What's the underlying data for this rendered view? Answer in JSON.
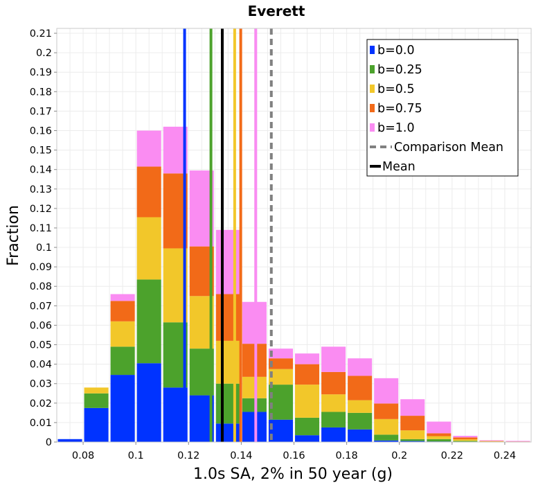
{
  "chart_data": {
    "type": "bar",
    "stacked": true,
    "title": "Everett",
    "xlabel": "1.0s SA, 2% in 50 year (g)",
    "ylabel": "Fraction",
    "xlim": [
      0.07,
      0.25
    ],
    "ylim": [
      0,
      0.2125
    ],
    "x_ticks": [
      "0.08",
      "0.1",
      "0.12",
      "0.14",
      "0.16",
      "0.18",
      "0.2",
      "0.22",
      "0.24"
    ],
    "x_tick_values": [
      0.08,
      0.1,
      0.12,
      0.14,
      0.16,
      0.18,
      0.2,
      0.22,
      0.24
    ],
    "y_ticks": [
      "0",
      "0.01",
      "0.02",
      "0.03",
      "0.04",
      "0.05",
      "0.06",
      "0.07",
      "0.08",
      "0.09",
      "0.1",
      "0.11",
      "0.12",
      "0.13",
      "0.14",
      "0.15",
      "0.16",
      "0.17",
      "0.18",
      "0.19",
      "0.2",
      "0.21"
    ],
    "y_tick_values": [
      0,
      0.01,
      0.02,
      0.03,
      0.04,
      0.05,
      0.06,
      0.07,
      0.08,
      0.09,
      0.1,
      0.11,
      0.12,
      0.13,
      0.14,
      0.15,
      0.16,
      0.17,
      0.18,
      0.19,
      0.2,
      0.21
    ],
    "grid": true,
    "legend_position": "top-right",
    "bin_width": 0.02,
    "bins": [
      {
        "x_start": 0.07,
        "x_end": 0.09
      },
      {
        "x_start": 0.09,
        "x_end": 0.11
      },
      {
        "x_start": 0.11,
        "x_end": 0.13
      },
      {
        "x_start": 0.13,
        "x_end": 0.15
      },
      {
        "x_start": 0.15,
        "x_end": 0.17
      },
      {
        "x_start": 0.17,
        "x_end": 0.19
      },
      {
        "x_start": 0.19,
        "x_end": 0.21
      },
      {
        "x_start": 0.21,
        "x_end": 0.23
      },
      {
        "x_start": 0.23,
        "x_end": 0.25
      }
    ],
    "series": [
      {
        "name": "b=0.0",
        "color": "#0033ff",
        "bars": [
          {
            "x_start": 0.07,
            "x_end": 0.08,
            "value": 0.0015
          },
          {
            "x_start": 0.08,
            "x_end": 0.09,
            "value": 0.0175
          },
          {
            "x_start": 0.09,
            "x_end": 0.1,
            "value": 0.0345
          },
          {
            "x_start": 0.1,
            "x_end": 0.11,
            "value": 0.0405
          },
          {
            "x_start": 0.11,
            "x_end": 0.12,
            "value": 0.028
          },
          {
            "x_start": 0.12,
            "x_end": 0.13,
            "value": 0.024
          },
          {
            "x_start": 0.13,
            "x_end": 0.14,
            "value": 0.0095
          },
          {
            "x_start": 0.14,
            "x_end": 0.15,
            "value": 0.0155
          },
          {
            "x_start": 0.15,
            "x_end": 0.16,
            "value": 0.0115
          },
          {
            "x_start": 0.16,
            "x_end": 0.17,
            "value": 0.0035
          },
          {
            "x_start": 0.17,
            "x_end": 0.18,
            "value": 0.0075
          },
          {
            "x_start": 0.18,
            "x_end": 0.19,
            "value": 0.0065
          },
          {
            "x_start": 0.19,
            "x_end": 0.2,
            "value": 0.0008
          },
          {
            "x_start": 0.2,
            "x_end": 0.21,
            "value": 0.0005
          },
          {
            "x_start": 0.21,
            "x_end": 0.22,
            "value": 0.0003
          },
          {
            "x_start": 0.22,
            "x_end": 0.23,
            "value": 0.0002
          },
          {
            "x_start": 0.23,
            "x_end": 0.24,
            "value": 0.0001
          },
          {
            "x_start": 0.24,
            "x_end": 0.25,
            "value": 0.0
          }
        ],
        "vline": 0.1185
      },
      {
        "name": "b=0.25",
        "color": "#4ca22c",
        "bars": [
          {
            "x_start": 0.08,
            "x_end": 0.09,
            "value": 0.0075
          },
          {
            "x_start": 0.09,
            "x_end": 0.1,
            "value": 0.0145
          },
          {
            "x_start": 0.1,
            "x_end": 0.11,
            "value": 0.043
          },
          {
            "x_start": 0.11,
            "x_end": 0.12,
            "value": 0.0335
          },
          {
            "x_start": 0.12,
            "x_end": 0.13,
            "value": 0.024
          },
          {
            "x_start": 0.13,
            "x_end": 0.14,
            "value": 0.0205
          },
          {
            "x_start": 0.14,
            "x_end": 0.15,
            "value": 0.007
          },
          {
            "x_start": 0.15,
            "x_end": 0.16,
            "value": 0.018
          },
          {
            "x_start": 0.16,
            "x_end": 0.17,
            "value": 0.009
          },
          {
            "x_start": 0.17,
            "x_end": 0.18,
            "value": 0.008
          },
          {
            "x_start": 0.18,
            "x_end": 0.19,
            "value": 0.0085
          },
          {
            "x_start": 0.19,
            "x_end": 0.2,
            "value": 0.003
          },
          {
            "x_start": 0.2,
            "x_end": 0.21,
            "value": 0.001
          },
          {
            "x_start": 0.21,
            "x_end": 0.22,
            "value": 0.0012
          },
          {
            "x_start": 0.22,
            "x_end": 0.23,
            "value": 0.0004
          },
          {
            "x_start": 0.23,
            "x_end": 0.24,
            "value": 0.0001
          },
          {
            "x_start": 0.24,
            "x_end": 0.25,
            "value": 0.0001
          }
        ],
        "vline": 0.1285
      },
      {
        "name": "b=0.5",
        "color": "#f2c72a",
        "bars": [
          {
            "x_start": 0.08,
            "x_end": 0.09,
            "value": 0.003
          },
          {
            "x_start": 0.09,
            "x_end": 0.1,
            "value": 0.013
          },
          {
            "x_start": 0.1,
            "x_end": 0.11,
            "value": 0.032
          },
          {
            "x_start": 0.11,
            "x_end": 0.12,
            "value": 0.038
          },
          {
            "x_start": 0.12,
            "x_end": 0.13,
            "value": 0.027
          },
          {
            "x_start": 0.13,
            "x_end": 0.14,
            "value": 0.022
          },
          {
            "x_start": 0.14,
            "x_end": 0.15,
            "value": 0.011
          },
          {
            "x_start": 0.15,
            "x_end": 0.16,
            "value": 0.008
          },
          {
            "x_start": 0.16,
            "x_end": 0.17,
            "value": 0.017
          },
          {
            "x_start": 0.17,
            "x_end": 0.18,
            "value": 0.009
          },
          {
            "x_start": 0.18,
            "x_end": 0.19,
            "value": 0.0065
          },
          {
            "x_start": 0.19,
            "x_end": 0.2,
            "value": 0.008
          },
          {
            "x_start": 0.2,
            "x_end": 0.21,
            "value": 0.0045
          },
          {
            "x_start": 0.21,
            "x_end": 0.22,
            "value": 0.0015
          },
          {
            "x_start": 0.22,
            "x_end": 0.23,
            "value": 0.0008
          },
          {
            "x_start": 0.23,
            "x_end": 0.24,
            "value": 0.0002
          },
          {
            "x_start": 0.24,
            "x_end": 0.25,
            "value": 0.0001
          }
        ],
        "vline": 0.1375
      },
      {
        "name": "b=0.75",
        "color": "#f26a18",
        "bars": [
          {
            "x_start": 0.09,
            "x_end": 0.1,
            "value": 0.0105
          },
          {
            "x_start": 0.1,
            "x_end": 0.11,
            "value": 0.026
          },
          {
            "x_start": 0.11,
            "x_end": 0.12,
            "value": 0.0385
          },
          {
            "x_start": 0.12,
            "x_end": 0.13,
            "value": 0.0255
          },
          {
            "x_start": 0.13,
            "x_end": 0.14,
            "value": 0.024
          },
          {
            "x_start": 0.14,
            "x_end": 0.15,
            "value": 0.017
          },
          {
            "x_start": 0.15,
            "x_end": 0.16,
            "value": 0.0055
          },
          {
            "x_start": 0.16,
            "x_end": 0.17,
            "value": 0.0105
          },
          {
            "x_start": 0.17,
            "x_end": 0.18,
            "value": 0.0115
          },
          {
            "x_start": 0.18,
            "x_end": 0.19,
            "value": 0.0125
          },
          {
            "x_start": 0.19,
            "x_end": 0.2,
            "value": 0.008
          },
          {
            "x_start": 0.2,
            "x_end": 0.21,
            "value": 0.0075
          },
          {
            "x_start": 0.21,
            "x_end": 0.22,
            "value": 0.0015
          },
          {
            "x_start": 0.22,
            "x_end": 0.23,
            "value": 0.001
          },
          {
            "x_start": 0.23,
            "x_end": 0.24,
            "value": 0.0002
          },
          {
            "x_start": 0.24,
            "x_end": 0.25,
            "value": 0.0001
          }
        ],
        "vline": 0.1398
      },
      {
        "name": "b=1.0",
        "color": "#fa8cf2",
        "bars": [
          {
            "x_start": 0.09,
            "x_end": 0.1,
            "value": 0.0035
          },
          {
            "x_start": 0.1,
            "x_end": 0.11,
            "value": 0.0185
          },
          {
            "x_start": 0.11,
            "x_end": 0.12,
            "value": 0.024
          },
          {
            "x_start": 0.12,
            "x_end": 0.13,
            "value": 0.039
          },
          {
            "x_start": 0.13,
            "x_end": 0.14,
            "value": 0.033
          },
          {
            "x_start": 0.14,
            "x_end": 0.15,
            "value": 0.0215
          },
          {
            "x_start": 0.15,
            "x_end": 0.16,
            "value": 0.005
          },
          {
            "x_start": 0.16,
            "x_end": 0.17,
            "value": 0.0055
          },
          {
            "x_start": 0.17,
            "x_end": 0.18,
            "value": 0.013
          },
          {
            "x_start": 0.18,
            "x_end": 0.19,
            "value": 0.009
          },
          {
            "x_start": 0.19,
            "x_end": 0.2,
            "value": 0.013
          },
          {
            "x_start": 0.2,
            "x_end": 0.21,
            "value": 0.0085
          },
          {
            "x_start": 0.21,
            "x_end": 0.22,
            "value": 0.006
          },
          {
            "x_start": 0.22,
            "x_end": 0.23,
            "value": 0.0008
          },
          {
            "x_start": 0.23,
            "x_end": 0.24,
            "value": 0.0003
          },
          {
            "x_start": 0.24,
            "x_end": 0.25,
            "value": 0.0003
          }
        ],
        "vline": 0.1455
      }
    ],
    "reference_lines": [
      {
        "name": "Comparison Mean",
        "x": 0.1514,
        "color": "#808080",
        "style": "dashed"
      },
      {
        "name": "Mean",
        "x": 0.1328,
        "color": "#000000",
        "style": "solid"
      }
    ],
    "legend": [
      {
        "label": "b=0.0",
        "type": "swatch",
        "color": "#0033ff"
      },
      {
        "label": "b=0.25",
        "type": "swatch",
        "color": "#4ca22c"
      },
      {
        "label": "b=0.5",
        "type": "swatch",
        "color": "#f2c72a"
      },
      {
        "label": "b=0.75",
        "type": "swatch",
        "color": "#f26a18"
      },
      {
        "label": "b=1.0",
        "type": "swatch",
        "color": "#fa8cf2"
      },
      {
        "label": "Comparison Mean",
        "type": "dashed",
        "color": "#808080"
      },
      {
        "label": "Mean",
        "type": "line",
        "color": "#000000"
      }
    ]
  }
}
